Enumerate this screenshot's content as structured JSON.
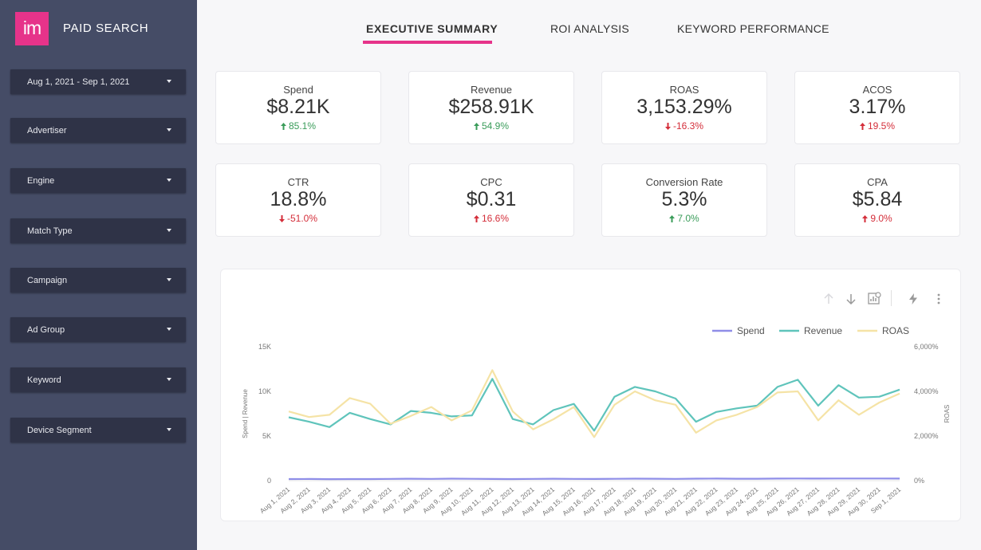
{
  "app": {
    "logo_text": "im",
    "title": "PAID SEARCH"
  },
  "filters": [
    {
      "label": "Aug 1, 2021 - Sep 1, 2021"
    },
    {
      "label": "Advertiser"
    },
    {
      "label": "Engine"
    },
    {
      "label": "Match Type"
    },
    {
      "label": "Campaign"
    },
    {
      "label": "Ad Group"
    },
    {
      "label": "Keyword"
    },
    {
      "label": "Device Segment"
    }
  ],
  "tabs": [
    {
      "label": "EXECUTIVE  SUMMARY",
      "active": true
    },
    {
      "label": "ROI ANALYSIS",
      "active": false
    },
    {
      "label": "KEYWORD PERFORMANCE",
      "active": false
    }
  ],
  "kpis": [
    {
      "label": "Spend",
      "value": "$8.21K",
      "delta": "85.1%",
      "direction": "up",
      "status": "good"
    },
    {
      "label": "Revenue",
      "value": "$258.91K",
      "delta": "54.9%",
      "direction": "up",
      "status": "good"
    },
    {
      "label": "ROAS",
      "value": "3,153.29%",
      "delta": "-16.3%",
      "direction": "down",
      "status": "bad"
    },
    {
      "label": "ACOS",
      "value": "3.17%",
      "delta": "19.5%",
      "direction": "up",
      "status": "bad"
    },
    {
      "label": "CTR",
      "value": "18.8%",
      "delta": "-51.0%",
      "direction": "down",
      "status": "bad"
    },
    {
      "label": "CPC",
      "value": "$0.31",
      "delta": "16.6%",
      "direction": "up",
      "status": "bad"
    },
    {
      "label": "Conversion Rate",
      "value": "5.3%",
      "delta": "7.0%",
      "direction": "up",
      "status": "good"
    },
    {
      "label": "CPA",
      "value": "$5.84",
      "delta": "9.0%",
      "direction": "up",
      "status": "bad"
    }
  ],
  "toolbar": {
    "icons": [
      "arrow-up-icon",
      "arrow-down-icon",
      "drill-icon",
      "lightning-icon",
      "more-vertical-icon"
    ]
  },
  "colors": {
    "sidebar": "#454c66",
    "filter_bg": "#2f3347",
    "accent": "#e6338a",
    "good": "#3a9c5a",
    "bad": "#d42e3a"
  },
  "chart_data": {
    "type": "line",
    "x": [
      "Aug 1, 2021",
      "Aug 2, 2021",
      "Aug 3, 2021",
      "Aug 4, 2021",
      "Aug 5, 2021",
      "Aug 6, 2021",
      "Aug 7, 2021",
      "Aug 8, 2021",
      "Aug 9, 2021",
      "Aug 10, 2021",
      "Aug 11, 2021",
      "Aug 12, 2021",
      "Aug 13, 2021",
      "Aug 14, 2021",
      "Aug 15, 2021",
      "Aug 16, 2021",
      "Aug 17, 2021",
      "Aug 18, 2021",
      "Aug 19, 2021",
      "Aug 20, 2021",
      "Aug 21, 2021",
      "Aug 22, 2021",
      "Aug 23, 2021",
      "Aug 24, 2021",
      "Aug 25, 2021",
      "Aug 26, 2021",
      "Aug 27, 2021",
      "Aug 28, 2021",
      "Aug 29, 2021",
      "Aug 30, 2021",
      "Sep 1, 2021"
    ],
    "series": [
      {
        "name": "Spend",
        "axis": "left",
        "color": "#8f8ee8",
        "values": [
          180,
          190,
          170,
          175,
          180,
          200,
          210,
          200,
          220,
          205,
          190,
          175,
          195,
          210,
          200,
          185,
          205,
          220,
          215,
          200,
          220,
          230,
          210,
          215,
          230,
          240,
          235,
          240,
          245,
          240,
          230
        ]
      },
      {
        "name": "Revenue",
        "axis": "left",
        "color": "#5fc4bb",
        "values": [
          7100,
          6600,
          6000,
          7600,
          6900,
          6300,
          7800,
          7600,
          7200,
          7300,
          11400,
          6900,
          6300,
          7900,
          8600,
          5600,
          9400,
          10500,
          10000,
          9200,
          6600,
          7700,
          8100,
          8400,
          10500,
          11300,
          8400,
          10700,
          9300,
          9400,
          10200
        ]
      },
      {
        "name": "ROAS",
        "axis": "right",
        "color": "#f5e3a6",
        "values": [
          3100,
          2850,
          2950,
          3700,
          3450,
          2550,
          2900,
          3300,
          2700,
          3150,
          4950,
          3100,
          2300,
          2750,
          3300,
          1950,
          3400,
          4000,
          3600,
          3400,
          2150,
          2700,
          2950,
          3300,
          3950,
          4000,
          2700,
          3600,
          2950,
          3500,
          3900
        ]
      }
    ],
    "y_left": {
      "label": "Spend | Revenue",
      "ticks": [
        "0",
        "5K",
        "10K",
        "15K"
      ],
      "range": [
        0,
        15000
      ]
    },
    "y_right": {
      "label": "ROAS",
      "ticks": [
        "0%",
        "2,000%",
        "4,000%",
        "6,000%"
      ],
      "range": [
        0,
        6000
      ]
    },
    "legend": "top-right"
  }
}
